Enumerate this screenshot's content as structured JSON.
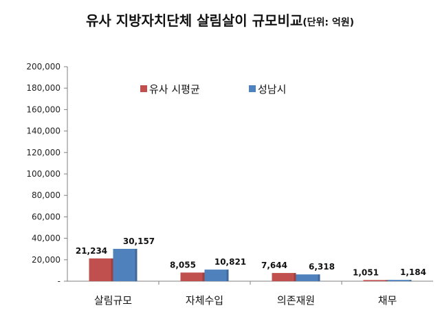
{
  "chart_data": {
    "type": "bar",
    "title": "유사 지방자치단체 살림살이 규모비교",
    "subtitle": "(단위: 억원)",
    "categories": [
      "살림규모",
      "자체수입",
      "의존재원",
      "채무"
    ],
    "series": [
      {
        "name": "유사 시평균",
        "color": "#c0504d",
        "values": [
          21234,
          8055,
          7644,
          1051
        ],
        "labels": [
          "21,234",
          "8,055",
          "7,644",
          "1,051"
        ]
      },
      {
        "name": "성남시",
        "color": "#4f81bd",
        "values": [
          30157,
          10821,
          6318,
          1184
        ],
        "labels": [
          "30,157",
          "10,821",
          "6,318",
          "1,184"
        ]
      }
    ],
    "ylim": [
      0,
      200000
    ],
    "yticks": [
      0,
      20000,
      40000,
      60000,
      80000,
      100000,
      120000,
      140000,
      160000,
      180000,
      200000
    ],
    "ytick_labels": [
      "-",
      "20,000",
      "40,000",
      "60,000",
      "80,000",
      "100,000",
      "120,000",
      "140,000",
      "160,000",
      "180,000",
      "200,000"
    ],
    "legend_position": "top-center",
    "grid": false
  }
}
